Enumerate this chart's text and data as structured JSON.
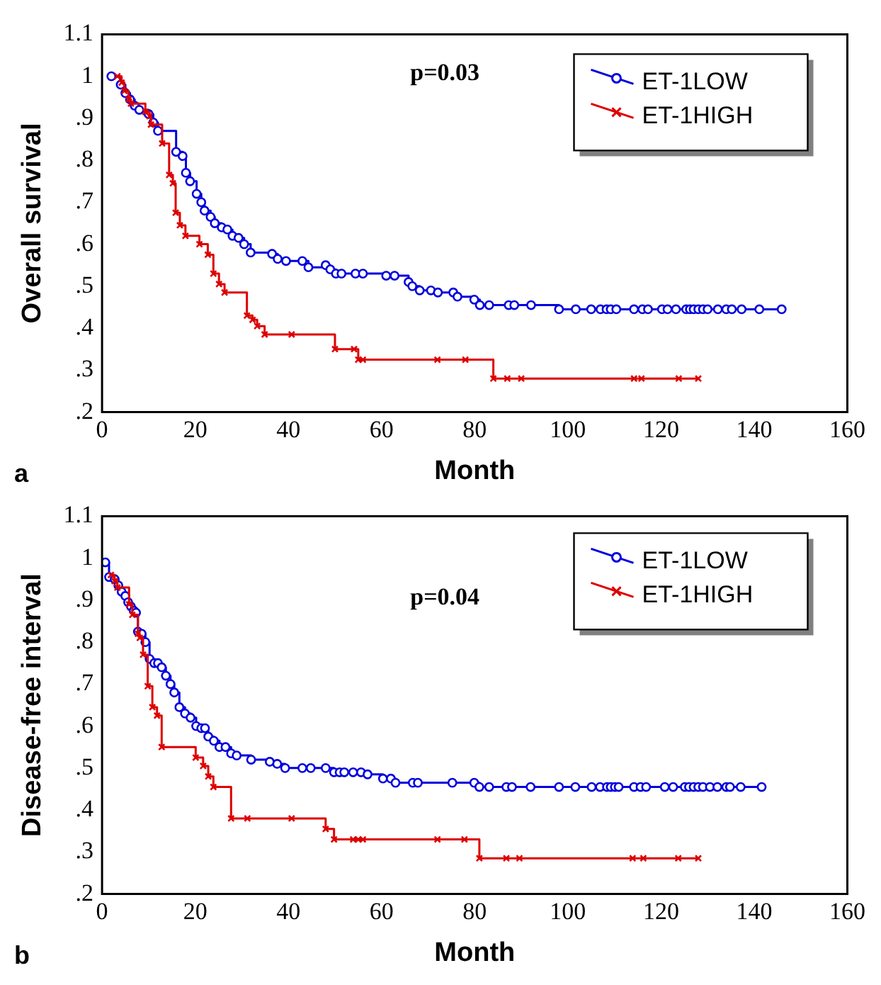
{
  "chart_data": [
    {
      "type": "step",
      "xlabel": "Month",
      "ylabel": "Overall survival",
      "xlim": [
        0,
        160
      ],
      "xticks": [
        0,
        20,
        40,
        60,
        80,
        100,
        120,
        140,
        160
      ],
      "ylim": [
        0.2,
        1.1
      ],
      "yticks": [
        {
          "value": 0.2,
          "label": ".2"
        },
        {
          "value": 0.3,
          "label": ".3"
        },
        {
          "value": 0.4,
          "label": ".4"
        },
        {
          "value": 0.5,
          "label": ".5"
        },
        {
          "value": 0.6,
          "label": ".6"
        },
        {
          "value": 0.7,
          "label": ".7"
        },
        {
          "value": 0.8,
          "label": ".8"
        },
        {
          "value": 0.9,
          "label": ".9"
        },
        {
          "value": 1,
          "label": "1"
        },
        {
          "value": 1.1,
          "label": "1.1"
        }
      ],
      "grid": false,
      "legend": "top right",
      "annotations": [
        "p=0.03",
        "a"
      ],
      "series": [
        {
          "name": "ET-1LOW",
          "color": "#0000dd",
          "marker": "circle",
          "x": [
            2,
            4,
            5,
            6,
            7,
            8,
            10,
            11,
            12,
            15.9,
            17.3,
            18,
            18.9,
            20.3,
            21.3,
            22,
            23.3,
            24.2,
            25.7,
            26.9,
            28,
            29.3,
            30.5,
            31.9,
            36.5,
            37.7,
            39.5,
            43,
            44.3,
            48,
            49,
            50.2,
            51.4,
            54.4,
            56,
            61,
            62.8,
            65.8,
            66.6,
            68.2,
            70.6,
            72.1,
            75.4,
            76.3,
            79.9,
            81.1,
            83.1,
            87.3,
            88.5,
            92.1,
            98.1,
            101.7,
            105,
            107,
            108.3,
            109.2,
            110.4,
            114.2,
            116,
            117.2,
            120.2,
            121.4,
            123.2,
            125.4,
            126.2,
            127,
            128,
            129,
            130,
            132.2,
            134,
            135.2,
            137.3,
            141.1,
            145.9
          ],
          "values": [
            1,
            0.98,
            0.96,
            0.945,
            0.93,
            0.92,
            0.91,
            0.89,
            0.87,
            0.82,
            0.81,
            0.77,
            0.75,
            0.72,
            0.7,
            0.68,
            0.665,
            0.65,
            0.64,
            0.635,
            0.62,
            0.615,
            0.6,
            0.58,
            0.577,
            0.565,
            0.56,
            0.56,
            0.545,
            0.55,
            0.54,
            0.53,
            0.53,
            0.53,
            0.53,
            0.525,
            0.525,
            0.51,
            0.5,
            0.49,
            0.49,
            0.485,
            0.485,
            0.475,
            0.468,
            0.455,
            0.455,
            0.455,
            0.455,
            0.455,
            0.445,
            0.445,
            0.445,
            0.445,
            0.445,
            0.445,
            0.445,
            0.445,
            0.445,
            0.445,
            0.445,
            0.445,
            0.445,
            0.445,
            0.445,
            0.445,
            0.445,
            0.445,
            0.445,
            0.445,
            0.445,
            0.445,
            0.445,
            0.445,
            0.445
          ]
        },
        {
          "name": "ET-1HIGH",
          "color": "#dd0000",
          "marker": "cross",
          "x": [
            3.3,
            4.2,
            4.8,
            5.7,
            6.2,
            9.3,
            10.2,
            10.5,
            12.9,
            14.4,
            15.2,
            15.8,
            16.7,
            17.9,
            20.9,
            22.7,
            23.9,
            25.1,
            26.3,
            31.1,
            32.3,
            33.3,
            34.9,
            40.7,
            50,
            54.1,
            55,
            56,
            72,
            78,
            84,
            87,
            90,
            114.2,
            115.8,
            123.8,
            128
          ],
          "values": [
            1,
            0.985,
            0.965,
            0.945,
            0.935,
            0.915,
            0.905,
            0.885,
            0.84,
            0.765,
            0.745,
            0.675,
            0.645,
            0.62,
            0.6,
            0.575,
            0.53,
            0.505,
            0.485,
            0.43,
            0.42,
            0.405,
            0.385,
            0.385,
            0.35,
            0.35,
            0.325,
            0.325,
            0.325,
            0.325,
            0.28,
            0.28,
            0.28,
            0.28,
            0.28,
            0.28,
            0.28
          ]
        }
      ]
    },
    {
      "type": "step",
      "xlabel": "Month",
      "ylabel": "Disease-free interval",
      "xlim": [
        0,
        160
      ],
      "xticks": [
        0,
        20,
        40,
        60,
        80,
        100,
        120,
        140,
        160
      ],
      "ylim": [
        0.2,
        1.1
      ],
      "yticks": [
        {
          "value": 0.2,
          "label": ".2"
        },
        {
          "value": 0.3,
          "label": ".3"
        },
        {
          "value": 0.4,
          "label": ".4"
        },
        {
          "value": 0.5,
          "label": ".5"
        },
        {
          "value": 0.6,
          "label": ".6"
        },
        {
          "value": 0.7,
          "label": ".7"
        },
        {
          "value": 0.8,
          "label": ".8"
        },
        {
          "value": 0.9,
          "label": ".9"
        },
        {
          "value": 1,
          "label": "1"
        },
        {
          "value": 1.1,
          "label": "1.1"
        }
      ],
      "grid": false,
      "legend": "top right",
      "annotations": [
        "p=0.04",
        "b"
      ],
      "series": [
        {
          "name": "ET-1LOW",
          "color": "#0000dd",
          "marker": "circle",
          "x": [
            0.7,
            1.5,
            2.7,
            3.5,
            4.2,
            5,
            5.6,
            6.2,
            6.8,
            7.3,
            7.7,
            8.5,
            9.3,
            10.2,
            11.2,
            12,
            12.8,
            13.7,
            14.7,
            15.5,
            16.6,
            17.8,
            19,
            20.2,
            21.3,
            22.1,
            22.8,
            24,
            25.2,
            26.5,
            27.7,
            28.9,
            32,
            36,
            37.6,
            39.3,
            43,
            44.8,
            48,
            49.8,
            51,
            52,
            53.9,
            55.6,
            57,
            60.3,
            62,
            63,
            66.7,
            67.8,
            75.2,
            79.9,
            81,
            83.1,
            86.8,
            88,
            92,
            98.1,
            101.6,
            105.1,
            106.9,
            108.4,
            109.2,
            110.1,
            110.9,
            114.2,
            115.6,
            116.8,
            120.8,
            122.6,
            125.1,
            126,
            127,
            128,
            129,
            130.5,
            132.1,
            134,
            134.8,
            137.1,
            141.6
          ],
          "values": [
            0.99,
            0.955,
            0.95,
            0.935,
            0.92,
            0.91,
            0.895,
            0.885,
            0.875,
            0.87,
            0.825,
            0.82,
            0.8,
            0.76,
            0.75,
            0.75,
            0.74,
            0.72,
            0.7,
            0.68,
            0.645,
            0.63,
            0.62,
            0.6,
            0.595,
            0.595,
            0.575,
            0.565,
            0.55,
            0.55,
            0.535,
            0.53,
            0.52,
            0.515,
            0.51,
            0.5,
            0.5,
            0.5,
            0.5,
            0.49,
            0.49,
            0.49,
            0.49,
            0.49,
            0.485,
            0.475,
            0.475,
            0.465,
            0.465,
            0.465,
            0.465,
            0.465,
            0.455,
            0.455,
            0.455,
            0.455,
            0.455,
            0.455,
            0.455,
            0.455,
            0.455,
            0.455,
            0.455,
            0.455,
            0.455,
            0.455,
            0.455,
            0.455,
            0.455,
            0.455,
            0.455,
            0.455,
            0.455,
            0.455,
            0.455,
            0.455,
            0.455,
            0.455,
            0.455,
            0.455,
            0.455
          ]
        },
        {
          "name": "ET-1HIGH",
          "color": "#dd0000",
          "marker": "cross",
          "x": [
            1.9,
            2.7,
            3.3,
            5.8,
            6.5,
            7.7,
            8.1,
            8.8,
            9.8,
            10.8,
            11.8,
            12.8,
            20.1,
            21.7,
            22.8,
            23.9,
            27.7,
            31.2,
            40.7,
            48,
            49.8,
            53.9,
            55,
            56,
            72,
            77.8,
            81,
            86.8,
            89.6,
            113.9,
            116.2,
            123.7,
            128
          ],
          "values": [
            0.96,
            0.945,
            0.93,
            0.89,
            0.865,
            0.82,
            0.81,
            0.77,
            0.695,
            0.645,
            0.625,
            0.55,
            0.525,
            0.505,
            0.48,
            0.455,
            0.38,
            0.38,
            0.38,
            0.355,
            0.33,
            0.33,
            0.33,
            0.33,
            0.33,
            0.33,
            0.285,
            0.285,
            0.285,
            0.285,
            0.285,
            0.285,
            0.285
          ]
        }
      ]
    }
  ]
}
